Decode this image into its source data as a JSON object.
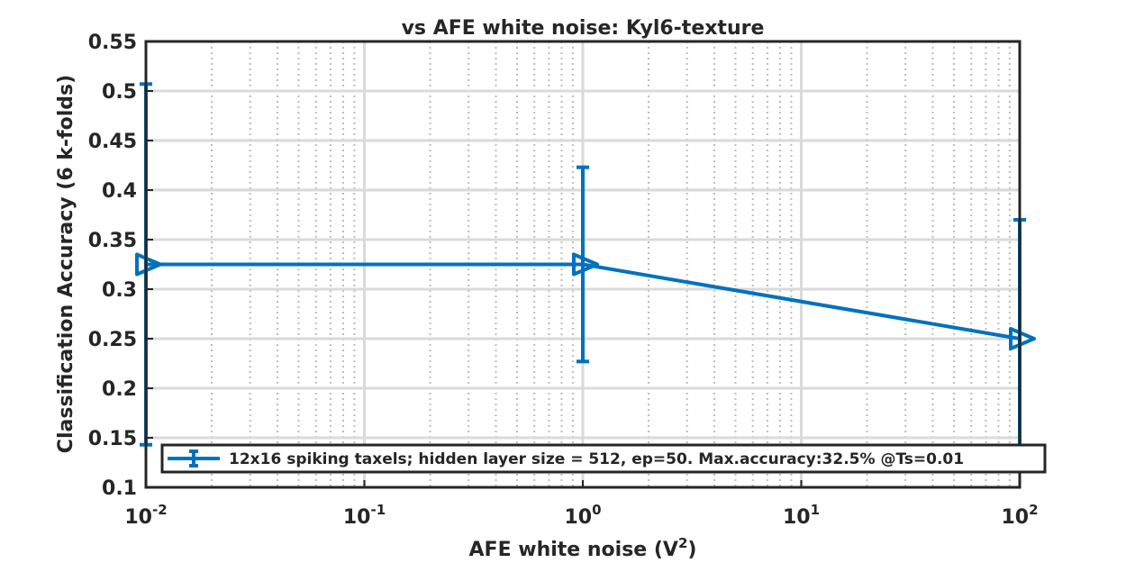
{
  "chart_data": {
    "type": "line",
    "title": "vs AFE white noise: Kyl6-texture",
    "xlabel_base": "AFE white noise (V",
    "xlabel_sup": "2",
    "xlabel_tail": ")",
    "ylabel": "Classification Accuracy (6 k-folds)",
    "x_scale": "log",
    "xlim": [
      0.01,
      100
    ],
    "ylim": [
      0.1,
      0.55
    ],
    "x_ticks": [
      {
        "base": "10",
        "exp": "-2",
        "value": 0.01
      },
      {
        "base": "10",
        "exp": "-1",
        "value": 0.1
      },
      {
        "base": "10",
        "exp": "0",
        "value": 1
      },
      {
        "base": "10",
        "exp": "1",
        "value": 10
      },
      {
        "base": "10",
        "exp": "2",
        "value": 100
      }
    ],
    "y_ticks": [
      "0.1",
      "0.15",
      "0.2",
      "0.25",
      "0.3",
      "0.35",
      "0.4",
      "0.45",
      "0.5",
      "0.55"
    ],
    "grid": true,
    "minor_grid": true,
    "legend_position": "bottom",
    "series": [
      {
        "name": "12x16 spiking taxels; hidden layer size = 512, ep=50. Max.accuracy:32.5% @Ts=0.01",
        "color": "#0072bd",
        "marker": "triangle-right",
        "x": [
          0.01,
          1,
          100
        ],
        "y": [
          0.325,
          0.325,
          0.25
        ],
        "y_low": [
          0.143,
          0.227,
          0.13
        ],
        "y_high": [
          0.507,
          0.423,
          0.37
        ]
      }
    ]
  }
}
